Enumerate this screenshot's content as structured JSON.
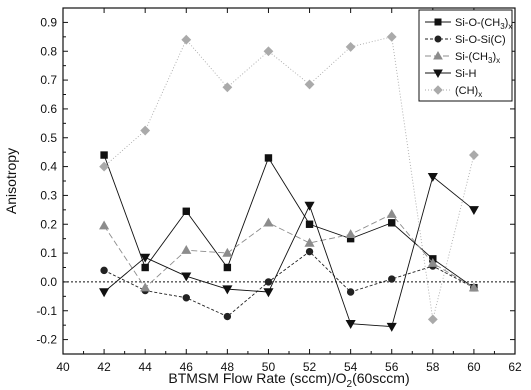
{
  "chart_data": {
    "type": "line",
    "xlabel": "BTMSM Flow Rate (sccm)/O2(60sccm)",
    "ylabel": "Anisotropy",
    "xlim": [
      40,
      62
    ],
    "ylim": [
      -0.25,
      0.95
    ],
    "xticks": [
      "40",
      "42",
      "44",
      "46",
      "48",
      "50",
      "52",
      "54",
      "56",
      "58",
      "60",
      "62"
    ],
    "yticks": [
      "-0.2",
      "-0.1",
      "0.0",
      "0.1",
      "0.2",
      "0.3",
      "0.4",
      "0.5",
      "0.6",
      "0.7",
      "0.8",
      "0.9"
    ],
    "zero_line": true,
    "grid": false,
    "legend_position": "top-right",
    "x": [
      42,
      44,
      46,
      48,
      50,
      52,
      54,
      56,
      58,
      60
    ],
    "series": [
      {
        "name": "Si-O-(CH3)x",
        "marker": "square",
        "color": "#111111",
        "dash": "none",
        "values": [
          0.44,
          0.05,
          0.245,
          0.05,
          0.43,
          0.2,
          0.15,
          0.205,
          0.08,
          -0.02
        ]
      },
      {
        "name": "Si-O-Si(C)",
        "marker": "circle",
        "color": "#222222",
        "dash": "3,2",
        "values": [
          0.04,
          -0.03,
          -0.055,
          -0.12,
          0.0,
          0.105,
          -0.035,
          0.01,
          0.055,
          -0.02
        ]
      },
      {
        "name": "Si-(CH3)x",
        "marker": "triangle-up",
        "color": "#8c8c8c",
        "dash": "6,3",
        "values": [
          0.195,
          -0.02,
          0.11,
          0.1,
          0.205,
          0.135,
          0.165,
          0.235,
          0.065,
          -0.02
        ]
      },
      {
        "name": "Si-H",
        "marker": "triangle-down",
        "color": "#111111",
        "dash": "none",
        "values": [
          -0.035,
          0.085,
          0.02,
          -0.025,
          -0.035,
          0.265,
          -0.145,
          -0.155,
          0.365,
          0.25
        ]
      },
      {
        "name": "(CH)x",
        "marker": "diamond",
        "color": "#aaaaaa",
        "dash": "1,2",
        "values": [
          0.4,
          0.525,
          0.84,
          0.675,
          0.8,
          0.685,
          0.815,
          0.85,
          -0.13,
          0.44
        ]
      }
    ]
  }
}
